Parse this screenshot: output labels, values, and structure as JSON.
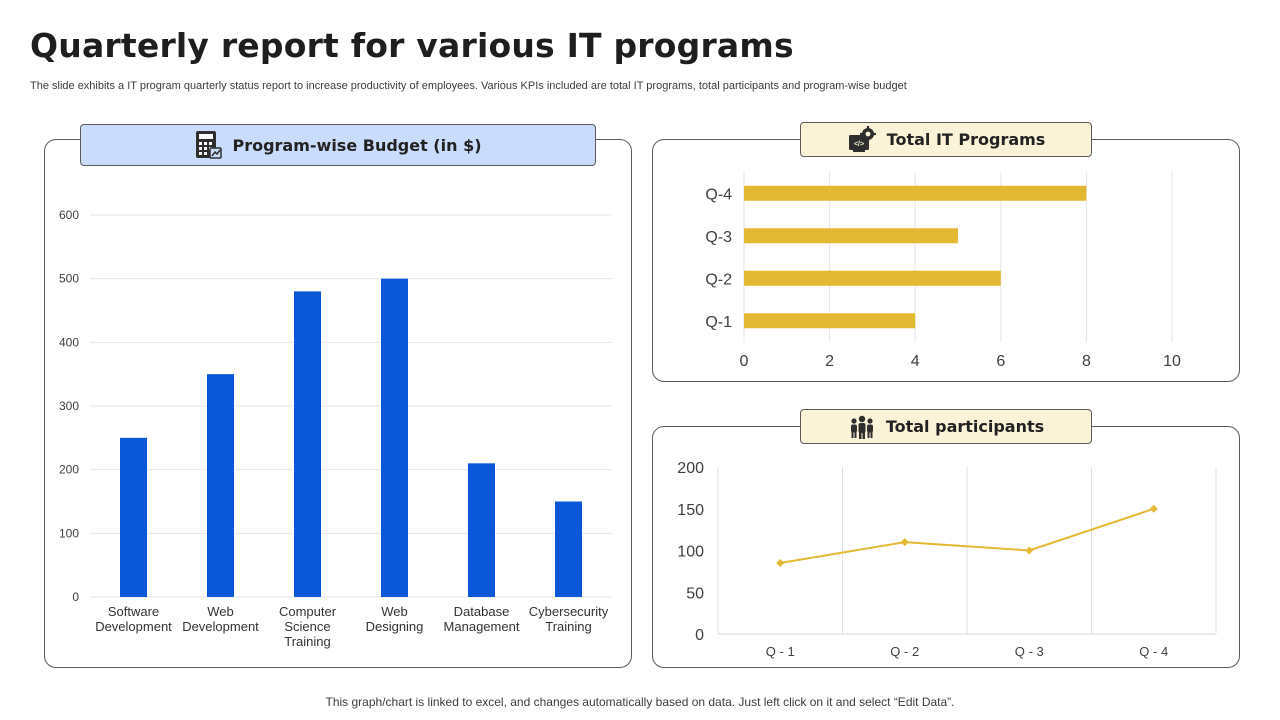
{
  "page": {
    "title": "Quarterly report for various IT programs",
    "subtitle": "The slide exhibits a IT program quarterly status report to increase productivity of employees. Various KPIs included are total IT programs, total participants and program-wise budget",
    "footer": "This graph/chart is linked to excel,  and changes automatically based on data. Just left click on it and select “Edit Data”."
  },
  "panels": {
    "budget": {
      "header": "Program-wise Budget (in $)",
      "icon": "calculator-icon"
    },
    "programs": {
      "header": "Total IT Programs",
      "icon": "gear-code-icon"
    },
    "participants": {
      "header": "Total participants",
      "icon": "people-group-icon"
    }
  },
  "colors": {
    "blue_bar": "#0b57d9",
    "gold": "#e3b832",
    "header_blue": "#c9dcfb",
    "header_cream": "#fbf3d8"
  },
  "chart_data": [
    {
      "type": "bar",
      "title": "Program-wise Budget (in $)",
      "categories": [
        [
          "Software",
          "Development"
        ],
        [
          "Web",
          "Development"
        ],
        [
          "Computer",
          "Science",
          "Training"
        ],
        [
          "Web",
          "Designing"
        ],
        [
          "Database",
          "Management"
        ],
        [
          "Cybersecurity",
          "Training"
        ]
      ],
      "values": [
        250,
        350,
        480,
        500,
        210,
        150
      ],
      "ylim": [
        0,
        600
      ],
      "yticks": [
        0,
        100,
        200,
        300,
        400,
        500,
        600
      ],
      "grid": true
    },
    {
      "type": "bar",
      "orientation": "horizontal",
      "title": "Total IT Programs",
      "categories": [
        "Q-1",
        "Q-2",
        "Q-3",
        "Q-4"
      ],
      "values": [
        4,
        6,
        5,
        8
      ],
      "xlim": [
        0,
        10
      ],
      "xticks": [
        0,
        2,
        4,
        6,
        8,
        10
      ],
      "grid": true
    },
    {
      "type": "line",
      "title": "Total participants",
      "categories": [
        "Q - 1",
        "Q - 2",
        "Q - 3",
        "Q - 4"
      ],
      "values": [
        85,
        110,
        100,
        150
      ],
      "ylim": [
        0,
        200
      ],
      "yticks": [
        0,
        50,
        100,
        150,
        200
      ],
      "marker": "diamond",
      "grid": true
    }
  ]
}
